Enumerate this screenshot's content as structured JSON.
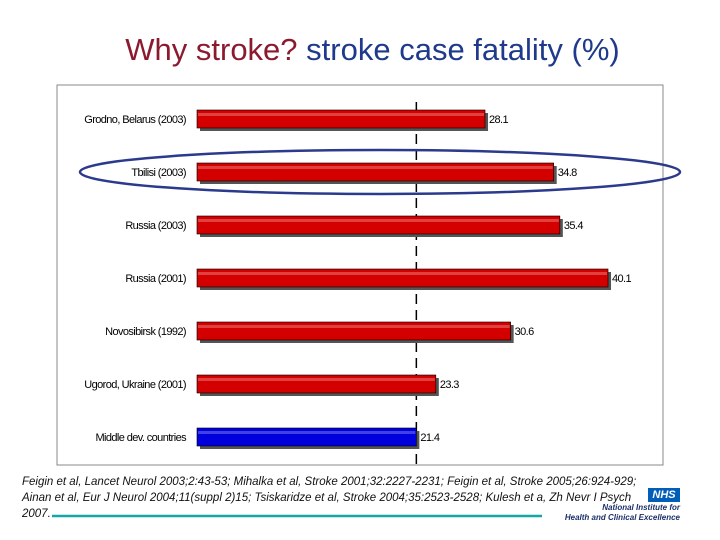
{
  "title": {
    "part1": "Why stroke?",
    "part2": "stroke case fatality (%)"
  },
  "chart_data": {
    "type": "bar",
    "orientation": "horizontal",
    "categories": [
      "Grodno, Belarus (2003)",
      "Tbilisi (2003)",
      "Russia (2003)",
      "Russia (2001)",
      "Novosibirsk (1992)",
      "Ugorod, Ukraine (2001)",
      "Middle dev. countries"
    ],
    "values": [
      28.1,
      34.8,
      35.4,
      40.1,
      30.6,
      23.3,
      21.4
    ],
    "value_labels": [
      "28.1",
      "34.8",
      "35.4",
      "40.1",
      "30.6",
      "23.3",
      "21.4"
    ],
    "bar_colors": [
      "#d40000",
      "#d40000",
      "#d40000",
      "#d40000",
      "#d40000",
      "#d40000",
      "#0000dd"
    ],
    "reference_line": 21.4,
    "highlighted_category": "Tbilisi (2003)",
    "highlight_color": "#2b3a8c",
    "grid": false,
    "xlim": [
      0,
      40.6
    ]
  },
  "references": {
    "line1": "Feigin et al, Lancet Neurol 2003;2:43-53; Mihalka et al, Stroke 2001;32:2227-2231; Feigin et al, Stroke 2005;26:924-929;",
    "line2": "Ainan et al, Eur J Neurol 2004;11(suppl 2)15; Tsiskaridze et al, Stroke 2004;35:2523-2528; Kulesh et a, Zh Nevr I Psych",
    "line3": "2007."
  },
  "logo": {
    "badge": "NHS",
    "line1": "National Institute for",
    "line2": "Health and Clinical Excellence",
    "badge_color": "#005eb8"
  }
}
